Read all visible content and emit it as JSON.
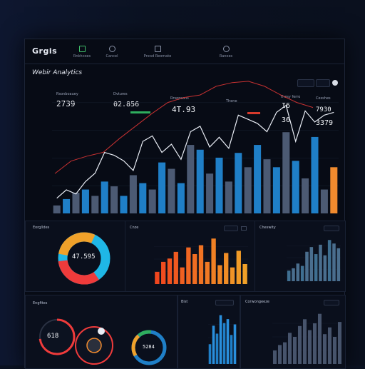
{
  "app": {
    "logo": "Grgis",
    "page_title": "Webir Analytics"
  },
  "nav": [
    {
      "label": "Rnkhcoes",
      "icon": "chart-icon"
    },
    {
      "label": "Cancel",
      "icon": "calendar-icon"
    },
    {
      "label": "Pncsd Reomate",
      "icon": "document-icon"
    },
    {
      "label": "Ranoes",
      "icon": "globe-icon"
    }
  ],
  "kpis": [
    {
      "label": "Rsonboauey",
      "value": "2739"
    },
    {
      "label": "Dvtures",
      "value": "02.856"
    },
    {
      "label": "Rrsopsons",
      "value": "4T.93"
    },
    {
      "label": "Thene",
      "value": ""
    },
    {
      "label": "Thesy ferro",
      "value": "I6"
    },
    {
      "label": "Cesshes",
      "value": "7930"
    }
  ],
  "kpi_extras": {
    "k5_value2": "36",
    "k6_value2": "3379"
  },
  "panels": {
    "donut1_title": "Eorg/ldes",
    "donut1_value": "47.595",
    "bar1_title": "Cnze",
    "bar2_title": "Cheswity",
    "b1_title": "Engfites",
    "b1_value": "618",
    "b2_title": "Bist",
    "b2_value": "5284",
    "b3_title": "Corwongeeze"
  },
  "colors": {
    "accent_orange": "#f08a2e",
    "bar_blue": "#1f7fc7",
    "bar_gray": "#4c5a73",
    "line_white": "#e9edf5",
    "line_red": "#c73131",
    "donut_cyan": "#1fb7e6",
    "donut_orange": "#f0a12a",
    "donut_red": "#ef3b3b"
  },
  "chart_data": [
    {
      "type": "bar",
      "title": "",
      "series": [
        {
          "values": [
            10,
            18,
            26,
            30,
            22,
            40,
            34,
            22,
            48,
            38,
            30,
            64,
            56,
            38,
            86,
            80,
            50,
            70,
            40,
            76,
            58,
            86,
            68,
            58,
            102,
            66,
            44,
            96,
            30,
            58
          ]
        }
      ],
      "line_white": [
        22,
        34,
        28,
        46,
        58,
        88,
        84,
        76,
        62,
        104,
        112,
        88,
        100,
        78,
        118,
        126,
        96,
        110,
        94,
        142,
        136,
        130,
        118,
        146,
        156,
        104,
        148,
        132,
        142,
        146
      ],
      "line_red": [
        64,
        84,
        92,
        98,
        120,
        140,
        160,
        178,
        186,
        190,
        204,
        210,
        212,
        204,
        190,
        178,
        170
      ]
    },
    {
      "type": "bar",
      "title": "",
      "values": [
        22,
        40,
        46,
        58,
        30,
        66,
        54,
        70,
        40,
        82,
        34,
        56,
        30,
        60,
        36
      ]
    },
    {
      "type": "bar",
      "title": "",
      "values": [
        18,
        22,
        30,
        26,
        50,
        58,
        46,
        62,
        44,
        70,
        64,
        56
      ]
    },
    {
      "type": "bar",
      "title": "",
      "values": [
        30,
        58,
        46,
        74,
        62,
        68,
        44,
        60
      ]
    },
    {
      "type": "bar",
      "title": "",
      "values": [
        20,
        28,
        32,
        46,
        40,
        56,
        66,
        50,
        60,
        74,
        44,
        54,
        40,
        62
      ]
    }
  ]
}
